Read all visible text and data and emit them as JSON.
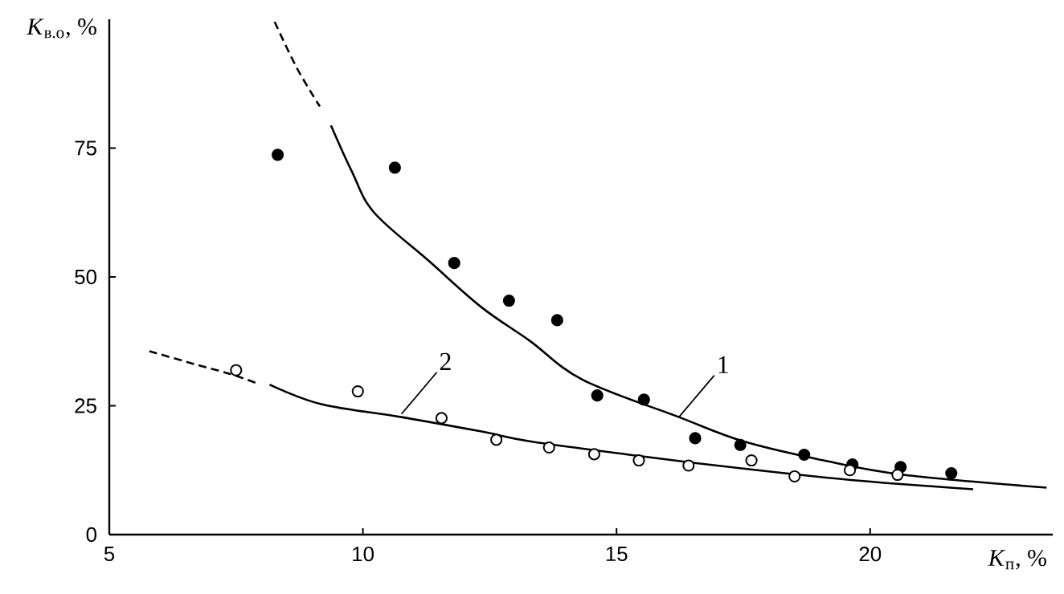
{
  "chart_data": {
    "type": "scatter",
    "xlabel": "*K*$_{п}$, %",
    "ylabel": "*K*$_{в.о}$, %",
    "xlim": [
      5,
      23.6
    ],
    "ylim": [
      0,
      100
    ],
    "xticks": [
      5,
      10,
      15,
      20
    ],
    "yticks": [
      0,
      25,
      50,
      75
    ],
    "grid": false,
    "series": [
      {
        "marker": "circle",
        "color": "#000000",
        "x": [
          8.32,
          10.63,
          11.8,
          12.88,
          13.83,
          14.62,
          15.54,
          16.55,
          17.44,
          18.7,
          19.65,
          20.6,
          21.6
        ],
        "values": [
          73.7,
          71.2,
          52.7,
          45.4,
          41.6,
          27.0,
          26.2,
          18.7,
          17.4,
          15.5,
          13.6,
          13.1,
          11.9
        ]
      },
      {
        "marker": "circle-open",
        "color": "#000000",
        "x": [
          7.5,
          9.9,
          11.55,
          12.63,
          13.67,
          14.56,
          15.44,
          16.42,
          17.66,
          18.51,
          19.6,
          20.54
        ],
        "values": [
          31.9,
          27.8,
          22.6,
          18.4,
          16.9,
          15.6,
          14.4,
          13.4,
          14.4,
          11.3,
          12.5,
          11.6
        ]
      },
      {
        "type": "line",
        "line_style": "dashed",
        "color": "#000000",
        "x": [
          8.26,
          8.7,
          9.15
        ],
        "values": [
          99.5,
          90.5,
          83.1
        ]
      },
      {
        "type": "line",
        "line_style": "solid",
        "color": "#000000",
        "x": [
          9.37,
          9.78,
          10.22,
          11.3,
          12.34,
          13.29,
          14.34,
          16.23,
          17.5,
          19.08,
          20.66,
          23.48
        ],
        "values": [
          79.4,
          70.5,
          62.5,
          53.1,
          44.1,
          37.6,
          30.0,
          22.8,
          18.1,
          14.4,
          11.6,
          9.1
        ]
      },
      {
        "type": "line",
        "line_style": "dashed",
        "color": "#000000",
        "x": [
          5.79,
          6.6,
          7.37,
          7.9
        ],
        "values": [
          35.6,
          33.3,
          31.2,
          29.4
        ]
      },
      {
        "type": "line",
        "line_style": "solid",
        "color": "#000000",
        "x": [
          8.16,
          9.18,
          10.76,
          12.34,
          13.29,
          15.41,
          17.5,
          19.62,
          22.03
        ],
        "values": [
          29.1,
          25.3,
          22.8,
          20.0,
          18.1,
          15.3,
          12.8,
          10.6,
          8.8
        ]
      }
    ],
    "annotations": [
      {
        "text": "1",
        "x": 16.23,
        "y": 22.8
      },
      {
        "text": "2",
        "x": 10.76,
        "y": 23.4
      }
    ]
  }
}
